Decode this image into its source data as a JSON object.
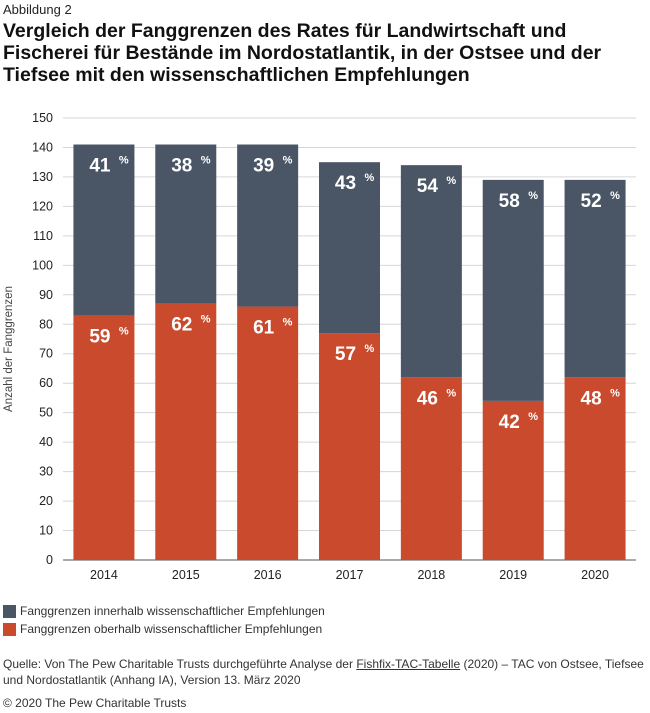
{
  "figure_label": "Abbildung 2",
  "chart_data": {
    "type": "bar",
    "stacked": true,
    "title": "Vergleich der Fanggrenzen des Rates für Landwirtschaft und Fischerei für Bestände im Nordostatlantik, in der Ostsee und der Tiefsee mit den wissenschaftlichen Empfehlungen",
    "ylabel": "Anzahl der Fanggrenzen",
    "xlabel": "",
    "ylim": [
      0,
      150
    ],
    "yticks": [
      0,
      10,
      20,
      30,
      40,
      50,
      60,
      70,
      80,
      90,
      100,
      110,
      120,
      130,
      140,
      150
    ],
    "categories": [
      "2014",
      "2015",
      "2016",
      "2017",
      "2018",
      "2019",
      "2020"
    ],
    "grid": true,
    "legend_position": "bottom-left",
    "series": [
      {
        "name": "Fanggrenzen oberhalb wissenschaftlicher Empfehlungen",
        "color": "#c94a2c",
        "values": [
          83,
          87,
          86,
          77,
          62,
          54,
          62
        ],
        "labels": [
          "59",
          "62",
          "61",
          "57",
          "46",
          "42",
          "48"
        ]
      },
      {
        "name": "Fanggrenzen innerhalb wissenschaftlicher Empfehlungen",
        "color": "#4a5565",
        "values": [
          58,
          54,
          55,
          58,
          72,
          75,
          67
        ],
        "labels": [
          "41",
          "38",
          "39",
          "43",
          "54",
          "58",
          "52"
        ]
      }
    ],
    "percent_symbol": "%"
  },
  "legend": {
    "inside_label": "Fanggrenzen innerhalb wissenschaftlicher Empfehlungen",
    "inside_color": "#4a5565",
    "above_label": "Fanggrenzen oberhalb wissenschaftlicher Empfehlungen",
    "above_color": "#c94a2c"
  },
  "source": {
    "prefix": "Quelle: Von The Pew Charitable Trusts durchgeführte Analyse der ",
    "link": "Fishfix-TAC-Tabelle",
    "suffix": " (2020) – TAC von Ostsee, Tiefsee und Nordostatlantik (Anhang IA), Version 13. März 2020"
  },
  "copyright": "© 2020 The Pew Charitable Trusts"
}
